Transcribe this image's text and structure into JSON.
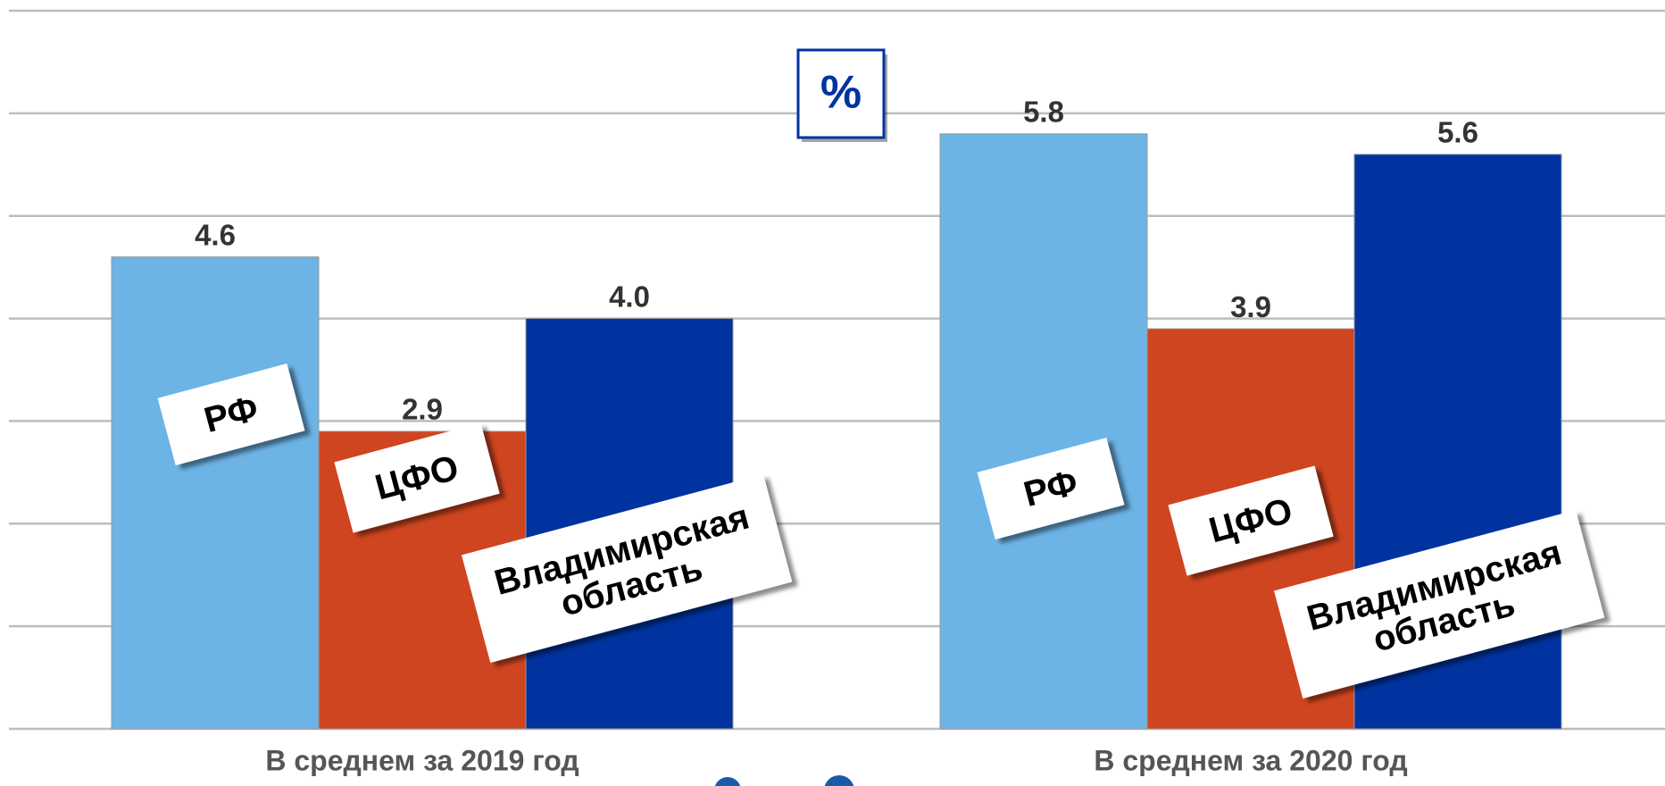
{
  "chart_data": {
    "type": "bar",
    "annotations": [
      "%"
    ],
    "categories": [
      "В среднем за 2019 год",
      "В среднем за 2020 год"
    ],
    "series": [
      {
        "name": "РФ",
        "color": "#6cb3e6",
        "values": [
          4.6,
          5.8
        ],
        "value_labels": [
          "4.6",
          "5.8"
        ]
      },
      {
        "name": "ЦФО",
        "color": "#cf4520",
        "values": [
          2.9,
          3.9
        ],
        "value_labels": [
          "2.9",
          "3.9"
        ]
      },
      {
        "name": "Владимирская область",
        "color": "#0033a0",
        "values": [
          4.0,
          5.6
        ],
        "value_labels": [
          "4.0",
          "5.6"
        ]
      }
    ],
    "ylim": [
      0,
      7
    ],
    "yticks": [
      0,
      1,
      2,
      3,
      4,
      5,
      6,
      7
    ],
    "grid": true
  }
}
